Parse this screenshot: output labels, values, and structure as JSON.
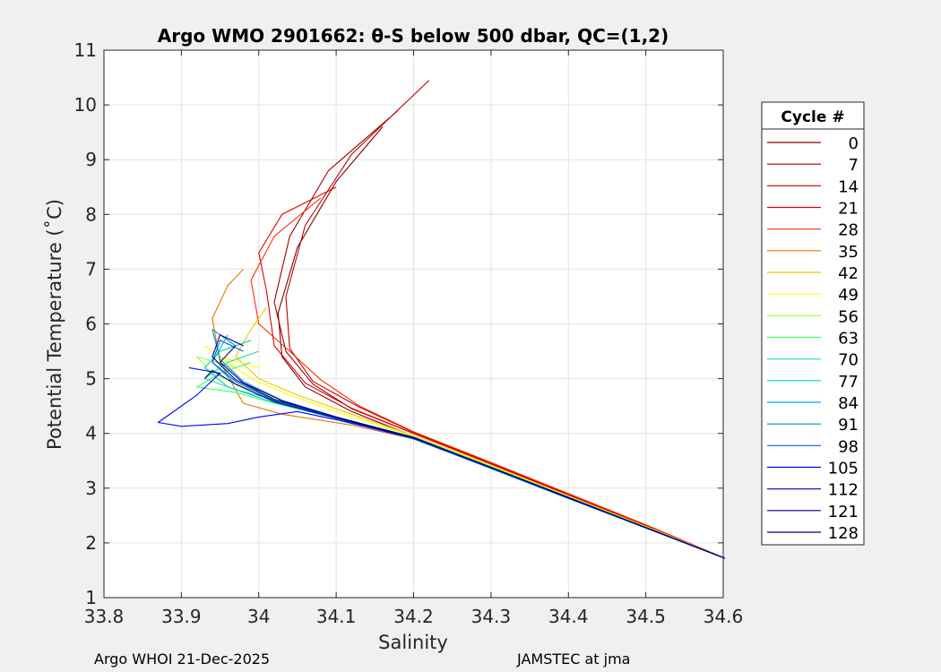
{
  "chart_data": {
    "type": "line",
    "title": "Argo WMO 2901662: θ-S below 500 dbar,  QC=(1,2)",
    "xlabel": "Salinity",
    "ylabel": "Potential Temperature (˚C)",
    "xlim": [
      33.8,
      34.6
    ],
    "ylim": [
      1,
      11
    ],
    "xticks": [
      33.8,
      33.9,
      34.0,
      34.1,
      34.2,
      34.3,
      34.4,
      34.5,
      34.6
    ],
    "xtick_labels": [
      "33.8",
      "33.9",
      "34",
      "34.1",
      "34.2",
      "34.3",
      "34.4",
      "34.5",
      "34.6"
    ],
    "yticks": [
      1,
      2,
      3,
      4,
      5,
      6,
      7,
      8,
      9,
      10,
      11
    ],
    "ytick_labels": [
      "1",
      "2",
      "3",
      "4",
      "5",
      "6",
      "7",
      "8",
      "9",
      "10",
      "11"
    ],
    "grid": true,
    "legend": {
      "title": "Cycle #",
      "placement": "right",
      "entries": [
        {
          "label": "0",
          "color": "#7f0000"
        },
        {
          "label": "7",
          "color": "#9f0000"
        },
        {
          "label": "14",
          "color": "#bf0000"
        },
        {
          "label": "21",
          "color": "#df0000"
        },
        {
          "label": "28",
          "color": "#ff2a00"
        },
        {
          "label": "35",
          "color": "#e07800"
        },
        {
          "label": "42",
          "color": "#e8c800"
        },
        {
          "label": "49",
          "color": "#ffff00"
        },
        {
          "label": "56",
          "color": "#9fff40"
        },
        {
          "label": "63",
          "color": "#40ff60"
        },
        {
          "label": "70",
          "color": "#20e090"
        },
        {
          "label": "77",
          "color": "#00d0c0"
        },
        {
          "label": "84",
          "color": "#00b0e0"
        },
        {
          "label": "91",
          "color": "#0090c0"
        },
        {
          "label": "98",
          "color": "#0060e0"
        },
        {
          "label": "105",
          "color": "#0000ff"
        },
        {
          "label": "112",
          "color": "#0000a0"
        },
        {
          "label": "121",
          "color": "#00007f"
        },
        {
          "label": "128",
          "color": "#000080"
        }
      ]
    },
    "series": [
      {
        "name": "0",
        "color": "#7f0000",
        "s": [
          34.602,
          34.5,
          34.4,
          34.3,
          34.2,
          34.12,
          34.06,
          34.03,
          34.025,
          34.05,
          34.1,
          34.16
        ],
        "t": [
          1.72,
          2.3,
          2.85,
          3.4,
          3.95,
          4.4,
          4.85,
          5.4,
          6.2,
          7.4,
          8.6,
          9.6
        ]
      },
      {
        "name": "7",
        "color": "#9f0000",
        "s": [
          34.602,
          34.5,
          34.4,
          34.3,
          34.2,
          34.12,
          34.07,
          34.035,
          34.02,
          34.04,
          34.09,
          34.18
        ],
        "t": [
          1.72,
          2.32,
          2.88,
          3.45,
          4.0,
          4.45,
          4.9,
          5.5,
          6.4,
          7.6,
          8.8,
          9.9
        ]
      },
      {
        "name": "14",
        "color": "#bf0000",
        "s": [
          34.602,
          34.5,
          34.4,
          34.3,
          34.2,
          34.13,
          34.07,
          34.04,
          34.035,
          34.06,
          34.12,
          34.22
        ],
        "t": [
          1.72,
          2.33,
          2.9,
          3.46,
          4.02,
          4.48,
          4.95,
          5.55,
          6.5,
          7.8,
          9.1,
          10.45
        ]
      },
      {
        "name": "21",
        "color": "#df0000",
        "s": [
          34.602,
          34.5,
          34.4,
          34.3,
          34.2,
          34.12,
          34.06,
          34.02,
          34.01,
          34.0,
          34.03,
          34.1
        ],
        "t": [
          1.72,
          2.31,
          2.87,
          3.44,
          4.0,
          4.46,
          4.92,
          5.6,
          6.6,
          7.3,
          8.0,
          8.5
        ]
      },
      {
        "name": "28",
        "color": "#ff2a00",
        "s": [
          34.602,
          34.5,
          34.4,
          34.3,
          34.2,
          34.13,
          34.08,
          34.04,
          34.0,
          33.99,
          34.02,
          34.08
        ],
        "t": [
          1.72,
          2.33,
          2.9,
          3.47,
          4.03,
          4.5,
          4.98,
          5.5,
          6.0,
          6.8,
          7.6,
          8.3
        ]
      },
      {
        "name": "35",
        "color": "#e07800",
        "s": [
          34.602,
          34.5,
          34.4,
          34.3,
          34.2,
          34.12,
          34.03,
          33.98,
          33.95,
          33.94,
          33.96,
          33.98
        ],
        "t": [
          1.72,
          2.28,
          2.82,
          3.38,
          3.9,
          4.15,
          4.35,
          4.55,
          5.3,
          6.1,
          6.7,
          7.0
        ]
      },
      {
        "name": "42",
        "color": "#e8c800",
        "s": [
          34.602,
          34.5,
          34.4,
          34.3,
          34.2,
          34.12,
          34.05,
          34.0,
          33.97,
          33.99,
          34.01
        ],
        "t": [
          1.72,
          2.3,
          2.86,
          3.42,
          3.96,
          4.35,
          4.7,
          5.0,
          5.4,
          5.9,
          6.3
        ]
      },
      {
        "name": "49",
        "color": "#ffff00",
        "s": [
          34.602,
          34.5,
          34.4,
          34.3,
          34.2,
          34.11,
          34.04,
          33.99,
          33.93,
          33.95,
          34.0
        ],
        "t": [
          1.72,
          2.3,
          2.85,
          3.41,
          3.95,
          4.35,
          4.7,
          5.0,
          5.6,
          5.4,
          5.2
        ]
      },
      {
        "name": "56",
        "color": "#9fff40",
        "s": [
          34.602,
          34.5,
          34.4,
          34.3,
          34.2,
          34.1,
          34.03,
          33.98,
          33.94,
          33.92,
          33.97
        ],
        "t": [
          1.72,
          2.29,
          2.84,
          3.4,
          3.94,
          4.3,
          4.6,
          4.85,
          5.1,
          5.4,
          5.2
        ]
      },
      {
        "name": "63",
        "color": "#40ff60",
        "s": [
          34.602,
          34.5,
          34.4,
          34.3,
          34.2,
          34.1,
          34.02,
          33.97,
          33.92,
          33.95,
          33.99
        ],
        "t": [
          1.72,
          2.28,
          2.83,
          3.39,
          3.92,
          4.28,
          4.55,
          4.75,
          4.85,
          5.1,
          5.3
        ]
      },
      {
        "name": "70",
        "color": "#20e090",
        "s": [
          34.602,
          34.5,
          34.4,
          34.3,
          34.2,
          34.1,
          34.03,
          33.97,
          33.93,
          33.96,
          34.0
        ],
        "t": [
          1.72,
          2.28,
          2.83,
          3.38,
          3.92,
          4.3,
          4.58,
          4.8,
          5.0,
          5.3,
          5.5
        ]
      },
      {
        "name": "77",
        "color": "#00d0c0",
        "s": [
          34.602,
          34.5,
          34.4,
          34.3,
          34.2,
          34.1,
          34.02,
          33.96,
          33.93,
          33.95,
          33.99
        ],
        "t": [
          1.72,
          2.27,
          2.82,
          3.37,
          3.9,
          4.27,
          4.56,
          4.85,
          5.2,
          5.5,
          5.7
        ]
      },
      {
        "name": "84",
        "color": "#00b0e0",
        "s": [
          34.602,
          34.5,
          34.4,
          34.3,
          34.2,
          34.1,
          34.02,
          33.97,
          33.94,
          33.96
        ],
        "t": [
          1.72,
          2.27,
          2.82,
          3.36,
          3.9,
          4.27,
          4.58,
          4.9,
          5.3,
          5.8
        ]
      },
      {
        "name": "91",
        "color": "#0090c0",
        "s": [
          34.602,
          34.5,
          34.4,
          34.3,
          34.2,
          34.1,
          34.03,
          33.98,
          33.95,
          33.94,
          33.97
        ],
        "t": [
          1.72,
          2.27,
          2.81,
          3.36,
          3.9,
          4.28,
          4.6,
          4.95,
          5.35,
          5.9,
          5.6
        ]
      },
      {
        "name": "98",
        "color": "#0060e0",
        "s": [
          34.602,
          34.5,
          34.4,
          34.3,
          34.2,
          34.1,
          34.02,
          33.97,
          33.94,
          33.95,
          33.98
        ],
        "t": [
          1.72,
          2.28,
          2.82,
          3.37,
          3.91,
          4.28,
          4.6,
          4.95,
          5.3,
          5.7,
          5.5
        ]
      },
      {
        "name": "105",
        "color": "#0000ff",
        "s": [
          34.602,
          34.5,
          34.4,
          34.3,
          34.2,
          34.1,
          34.05,
          34.0,
          33.96,
          33.9,
          33.87,
          33.92,
          33.95,
          33.91
        ],
        "t": [
          1.72,
          2.28,
          2.82,
          3.37,
          3.91,
          4.25,
          4.4,
          4.3,
          4.18,
          4.13,
          4.2,
          4.7,
          5.1,
          5.2
        ]
      },
      {
        "name": "112",
        "color": "#0000a0",
        "s": [
          34.602,
          34.5,
          34.4,
          34.3,
          34.2,
          34.1,
          34.02,
          33.97,
          33.94,
          33.95,
          33.98
        ],
        "t": [
          1.72,
          2.28,
          2.83,
          3.38,
          3.92,
          4.3,
          4.62,
          4.98,
          5.4,
          5.8,
          5.6
        ]
      },
      {
        "name": "121",
        "color": "#00007f",
        "s": [
          34.602,
          34.5,
          34.4,
          34.3,
          34.2,
          34.1,
          34.03,
          33.98,
          33.95,
          33.97
        ],
        "t": [
          1.72,
          2.28,
          2.83,
          3.38,
          3.93,
          4.3,
          4.6,
          4.92,
          5.3,
          5.6
        ]
      },
      {
        "name": "128",
        "color": "#000080",
        "s": [
          34.602,
          34.5,
          34.4,
          34.3,
          34.2,
          34.1,
          34.02,
          33.97,
          33.94,
          33.93
        ],
        "t": [
          1.72,
          2.28,
          2.83,
          3.38,
          3.92,
          4.28,
          4.58,
          4.9,
          5.15,
          5.0
        ]
      }
    ]
  },
  "footer": {
    "left": "Argo WHOI 21-Dec-2025",
    "right": "JAMSTEC at jma"
  }
}
